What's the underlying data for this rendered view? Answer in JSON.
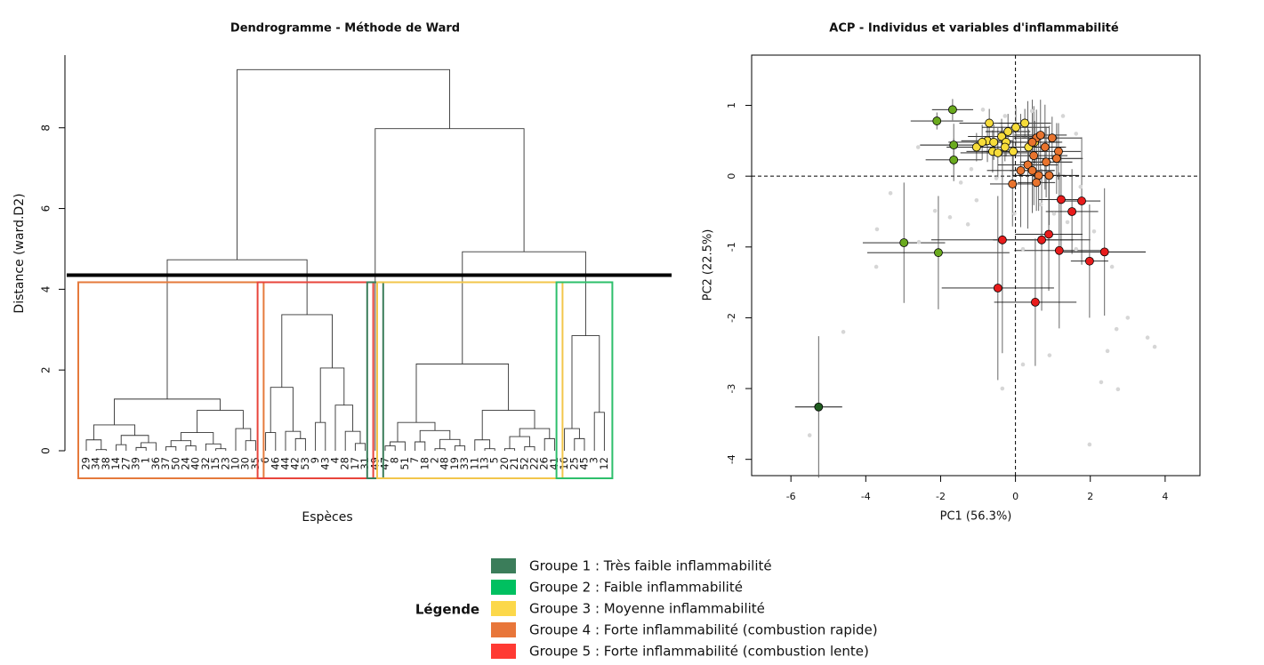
{
  "chart_data": [
    {
      "type": "dendrogram",
      "title": "Dendrogramme - Méthode de Ward",
      "ylabel": "Distance (ward.D2)",
      "xlabel": "Espèces",
      "ylim": [
        0,
        9.8
      ],
      "yticks": [
        0,
        2,
        4,
        6,
        8
      ],
      "cut_height": 4.35,
      "cluster_colors": [
        "#e57a3c",
        "#e8453c",
        "#3b7d5a",
        "#f2c64b",
        "#2dbf6b"
      ],
      "tree": [
        9.44,
        [
          4.73,
          [
            1.28,
            [
              0.64,
              [
                0.27,
                "29",
                [
                  0.03,
                  "34",
                  "38"
                ]
              ],
              [
                0.38,
                [
                  0.15,
                  "14",
                  "27"
                ],
                [
                  0.2,
                  [
                    0.08,
                    "39",
                    "1"
                  ],
                  "36"
                ]
              ]
            ],
            [
              1.0,
              [
                0.45,
                [
                  0.25,
                  [
                    0.1,
                    "37",
                    "50"
                  ],
                  [
                    0.12,
                    "24",
                    "40"
                  ]
                ],
                [
                  0.17,
                  "32",
                  [
                    0.05,
                    "15",
                    "23"
                  ]
                ]
              ],
              [
                0.55,
                "10",
                [
                  0.25,
                  "30",
                  "35"
                ]
              ]
            ]
          ],
          [
            3.37,
            [
              1.57,
              [
                0.45,
                "6",
                "46"
              ],
              [
                0.48,
                "44",
                [
                  0.3,
                  "42",
                  "53"
                ]
              ]
            ],
            [
              2.05,
              [
                0.7,
                "9",
                "43"
              ],
              [
                1.13,
                "4",
                [
                  0.48,
                  "28",
                  [
                    0.18,
                    "17",
                    "31"
                  ]
                ]
              ]
            ]
          ]
        ],
        [
          7.98,
          "49",
          [
            4.93,
            [
              2.15,
              [
                0.7,
                [
                  0.22,
                  [
                    0.12,
                    "47",
                    "8"
                  ],
                  "51"
                ],
                [
                  0.5,
                  [
                    0.22,
                    "7",
                    "18"
                  ],
                  [
                    0.28,
                    [
                      0.05,
                      "2",
                      "48"
                    ],
                    [
                      0.12,
                      "19",
                      "33"
                    ]
                  ]
                ]
              ],
              [
                1.0,
                [
                  0.27,
                  "11",
                  [
                    0.05,
                    "13",
                    "5"
                  ]
                ],
                [
                  0.55,
                  [
                    0.35,
                    [
                      0.05,
                      "20",
                      "21"
                    ],
                    [
                      0.1,
                      "52",
                      "22"
                    ]
                  ],
                  [
                    0.3,
                    "26",
                    "41"
                  ]
                ]
              ]
            ],
            [
              2.85,
              [
                0.55,
                "16",
                [
                  0.3,
                  "25",
                  "45"
                ]
              ],
              [
                0.95,
                "3",
                "12"
              ]
            ]
          ]
        ]
      ]
    },
    {
      "type": "scatter",
      "title": "ACP - Individus et variables d'inflammabilité",
      "xlabel": "PC1 (56.3%)",
      "ylabel": "PC2 (22.5%)",
      "xlim": [
        -7.05,
        4.93
      ],
      "ylim": [
        -4.23,
        1.71
      ],
      "xticks": [
        -6,
        -4,
        -2,
        0,
        2,
        4
      ],
      "yticks": [
        -4,
        -3,
        -2,
        -1,
        0,
        1
      ],
      "reference_x": 0,
      "reference_y": 0,
      "series": [
        {
          "color": "#d6d6d6",
          "x": [
            -5.5,
            -4.6,
            -3.7,
            -3.34,
            -3.72,
            -2.15,
            -2.6,
            -2.58,
            -1.75,
            -1.27,
            -1.04,
            -1.46,
            -0.87,
            -0.28,
            0.44,
            1.27,
            1.62,
            1.74,
            1.39,
            2.1,
            2.58,
            3.0,
            2.7,
            2.46,
            2.29,
            2.74,
            1.98,
            3.53,
            3.72,
            -0.35,
            0.2,
            0.91,
            -0.51,
            -0.03,
            0.68,
            1.03,
            1.62,
            -1.18,
            0.2
          ],
          "y": [
            -3.66,
            -2.2,
            -0.75,
            -0.24,
            -1.28,
            -0.49,
            0.41,
            -0.93,
            -0.58,
            -0.68,
            -0.34,
            -0.09,
            0.94,
            0.85,
            0.92,
            0.85,
            0.6,
            -0.15,
            -0.65,
            -0.78,
            -1.28,
            -2.0,
            -2.16,
            -2.47,
            -2.91,
            -3.01,
            -3.79,
            -2.28,
            -2.41,
            -3.0,
            -2.66,
            -2.53,
            -0.03,
            -0.53,
            -0.4,
            -0.53,
            -1.03,
            0.1,
            -1.03
          ]
        },
        {
          "color": "#1f5c1f",
          "x": [
            -5.26
          ],
          "y": [
            -3.26
          ],
          "xerr": [
            0.63
          ],
          "yerr": [
            1.0
          ]
        },
        {
          "color": "#6aaa1e",
          "x": [
            -1.68,
            -2.1,
            -1.65,
            -1.65,
            -2.98,
            -2.06
          ],
          "y": [
            0.94,
            0.78,
            0.44,
            0.23,
            -0.94,
            -1.08
          ],
          "xerr": [
            0.55,
            0.7,
            0.9,
            0.75,
            1.1,
            1.9
          ],
          "yerr": [
            0.15,
            0.12,
            0.3,
            0.3,
            0.85,
            0.8
          ]
        },
        {
          "color": "#f7dc3a",
          "x": [
            -0.7,
            -0.37,
            -0.75,
            -1.04,
            -0.89,
            -0.61,
            -0.47,
            -0.25,
            -0.2,
            0.01,
            0.25,
            -0.06,
            0.35,
            0.51,
            -0.28,
            -0.58
          ],
          "y": [
            0.75,
            0.56,
            0.5,
            0.41,
            0.48,
            0.35,
            0.33,
            0.48,
            0.63,
            0.69,
            0.75,
            0.35,
            0.41,
            0.48,
            0.41,
            0.48
          ],
          "xerr": [
            0.8,
            0.9,
            0.7,
            0.8,
            0.9,
            0.7,
            1.0,
            0.8,
            0.6,
            0.9,
            0.7,
            0.8,
            1.0,
            0.7,
            0.9,
            0.6
          ],
          "yerr": [
            0.2,
            0.25,
            0.3,
            0.2,
            0.25,
            0.3,
            0.35,
            0.2,
            0.25,
            0.3,
            0.2,
            0.35,
            0.25,
            0.3,
            0.2,
            0.25
          ]
        },
        {
          "color": "#e8742e",
          "x": [
            0.56,
            0.67,
            0.98,
            0.79,
            1.15,
            0.49,
            0.82,
            0.33,
            0.45,
            0.14,
            0.62,
            0.9,
            -0.08,
            0.56,
            1.1,
            0.45
          ],
          "y": [
            0.54,
            0.58,
            0.54,
            0.41,
            0.35,
            0.29,
            0.2,
            0.16,
            0.08,
            0.08,
            0.01,
            0.01,
            -0.11,
            -0.09,
            0.25,
            0.48
          ],
          "xerr": [
            0.6,
            0.7,
            0.8,
            0.5,
            0.6,
            0.9,
            0.7,
            0.8,
            0.6,
            0.9,
            0.7,
            0.8,
            0.6,
            0.5,
            0.7,
            0.8
          ],
          "yerr": [
            0.4,
            0.5,
            0.3,
            0.6,
            0.4,
            0.7,
            0.5,
            0.9,
            0.6,
            0.8,
            0.5,
            0.7,
            0.6,
            0.4,
            0.5,
            0.6
          ]
        },
        {
          "color": "#e81c1c",
          "x": [
            1.22,
            1.77,
            1.51,
            0.89,
            0.7,
            -0.35,
            1.17,
            2.38,
            1.98,
            -0.47,
            0.53
          ],
          "y": [
            -0.33,
            -0.35,
            -0.5,
            -0.82,
            -0.9,
            -0.9,
            -1.05,
            -1.07,
            -1.2,
            -1.58,
            -1.78
          ],
          "xerr": [
            0.6,
            0.5,
            0.7,
            0.9,
            1.3,
            1.9,
            1.2,
            1.1,
            0.5,
            1.5,
            1.1
          ],
          "yerr": [
            0.7,
            0.9,
            0.6,
            0.8,
            1.0,
            1.6,
            1.1,
            0.9,
            0.8,
            1.3,
            0.9
          ]
        }
      ]
    }
  ],
  "legend": {
    "title": "Légende",
    "items": [
      {
        "label": "Groupe 1 : Très faible inflammabilité",
        "color": "#3b7d5a"
      },
      {
        "label": "Groupe 2 : Faible inflammabilité",
        "color": "#00c060"
      },
      {
        "label": "Groupe 3 : Moyenne inflammabilité",
        "color": "#fcd84a"
      },
      {
        "label": "Groupe 4 : Forte inflammabilité (combustion rapide)",
        "color": "#e8763a"
      },
      {
        "label": "Groupe 5 : Forte inflammabilité (combustion lente)",
        "color": "#ff3a33"
      }
    ]
  }
}
